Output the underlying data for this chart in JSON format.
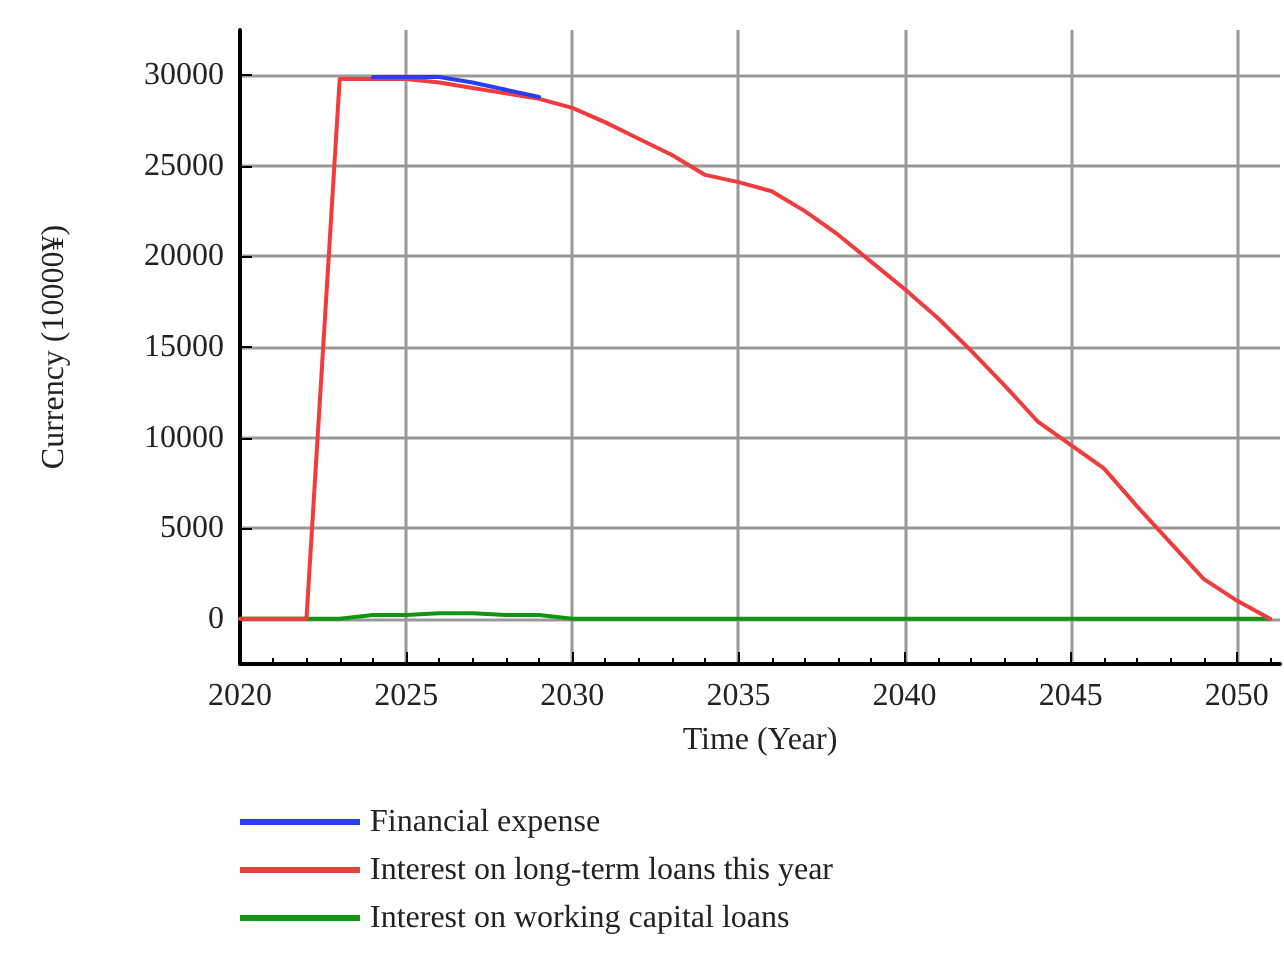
{
  "chart_data": {
    "type": "line",
    "xlabel": "Time (Year)",
    "ylabel": "Currency (10000¥)",
    "x": [
      2020,
      2021,
      2022,
      2023,
      2024,
      2025,
      2026,
      2027,
      2028,
      2029,
      2030,
      2031,
      2032,
      2033,
      2034,
      2035,
      2036,
      2037,
      2038,
      2039,
      2040,
      2041,
      2042,
      2043,
      2044,
      2045,
      2046,
      2047,
      2048,
      2049,
      2050,
      2051
    ],
    "series": [
      {
        "name": "Financial expense",
        "color": "#2b3cf5",
        "values": [
          null,
          null,
          null,
          null,
          29900,
          29900,
          29900,
          29600,
          29200,
          28800,
          null,
          null,
          null,
          null,
          null,
          null,
          null,
          null,
          null,
          null,
          null,
          null,
          null,
          null,
          null,
          null,
          null,
          null,
          null,
          null,
          null,
          null
        ]
      },
      {
        "name": "Interest on long-term loans this year",
        "color": "#f03c3c",
        "values": [
          0,
          0,
          0,
          29800,
          29800,
          29800,
          29600,
          29300,
          29000,
          28700,
          28200,
          27400,
          26500,
          25600,
          24500,
          24100,
          23600,
          22500,
          21200,
          19700,
          18200,
          16600,
          14800,
          12900,
          10900,
          9600,
          8300,
          6200,
          4200,
          2200,
          1000,
          0
        ]
      },
      {
        "name": "Interest on working capital loans",
        "color": "#129612",
        "values": [
          0,
          0,
          0,
          0,
          200,
          200,
          300,
          300,
          200,
          200,
          0,
          0,
          0,
          0,
          0,
          0,
          0,
          0,
          0,
          0,
          0,
          0,
          0,
          0,
          0,
          0,
          0,
          0,
          0,
          0,
          0,
          0
        ]
      }
    ],
    "xlim": [
      2020,
      2051.3
    ],
    "xticks": [
      2020,
      2025,
      2030,
      2035,
      2040,
      2045,
      2050
    ],
    "ylim": [
      -2500,
      32500
    ],
    "yticks": [
      0,
      5000,
      10000,
      15000,
      20000,
      25000,
      30000
    ],
    "grid": true,
    "legend": "bottom"
  }
}
